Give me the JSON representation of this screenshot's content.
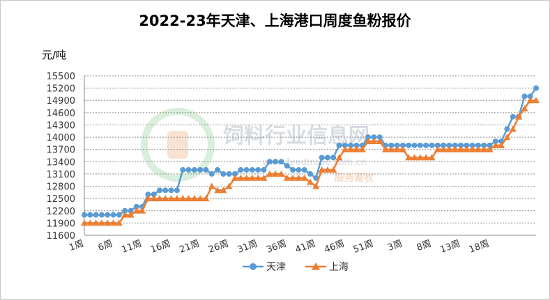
{
  "chart_data": {
    "type": "line",
    "title": "2022-23年天津、上海港口周度鱼粉报价",
    "ylabel": "元/吨",
    "xlabel": "",
    "ylim": [
      11600,
      15500
    ],
    "yticks": [
      11600,
      11900,
      12200,
      12500,
      12800,
      13100,
      13400,
      13700,
      14000,
      14300,
      14600,
      14900,
      15200,
      15500
    ],
    "x_tick_labels": [
      "1周",
      "6周",
      "11周",
      "16周",
      "21周",
      "26周",
      "31周",
      "36周",
      "41周",
      "46周",
      "51周",
      "3周",
      "8周",
      "13周",
      "18周"
    ],
    "grid": true,
    "legend_position": "bottom",
    "series": [
      {
        "name": "天津",
        "color": "#5b9bd5",
        "marker": "circle",
        "values": [
          12100,
          12100,
          12100,
          12100,
          12100,
          12100,
          12100,
          12200,
          12200,
          12300,
          12300,
          12600,
          12600,
          12700,
          12700,
          12700,
          12700,
          13200,
          13200,
          13200,
          13200,
          13200,
          13100,
          13200,
          13100,
          13100,
          13100,
          13200,
          13200,
          13200,
          13200,
          13200,
          13400,
          13400,
          13400,
          13300,
          13200,
          13200,
          13200,
          13100,
          13000,
          13500,
          13500,
          13500,
          13800,
          13800,
          13800,
          13800,
          13800,
          14000,
          14000,
          14000,
          13800,
          13800,
          13800,
          13800,
          13800,
          13800,
          13800,
          13800,
          13800,
          13800,
          13800,
          13800,
          13800,
          13800,
          13800,
          13800,
          13800,
          13800,
          13800,
          13900,
          13900,
          14200,
          14500,
          14500,
          15000,
          15000,
          15200
        ]
      },
      {
        "name": "上海",
        "color": "#ed7d31",
        "marker": "triangle",
        "values": [
          11900,
          11900,
          11900,
          11900,
          11900,
          11900,
          11900,
          12100,
          12100,
          12200,
          12200,
          12500,
          12500,
          12500,
          12500,
          12500,
          12500,
          12500,
          12500,
          12500,
          12500,
          12500,
          12800,
          12700,
          12700,
          12800,
          13000,
          13000,
          13000,
          13000,
          13000,
          13000,
          13100,
          13100,
          13100,
          13000,
          13000,
          13000,
          13000,
          12900,
          12800,
          13200,
          13200,
          13200,
          13500,
          13700,
          13700,
          13700,
          13700,
          13900,
          13900,
          13900,
          13700,
          13700,
          13700,
          13700,
          13500,
          13500,
          13500,
          13500,
          13500,
          13700,
          13700,
          13700,
          13700,
          13700,
          13700,
          13700,
          13700,
          13700,
          13700,
          13800,
          13800,
          14000,
          14200,
          14500,
          14700,
          14900,
          14900
        ]
      }
    ]
  },
  "watermark": {
    "line1": "饲料行业信息网",
    "line2": "www.feedtrade.com.cn",
    "line3": "服务畜牧"
  }
}
